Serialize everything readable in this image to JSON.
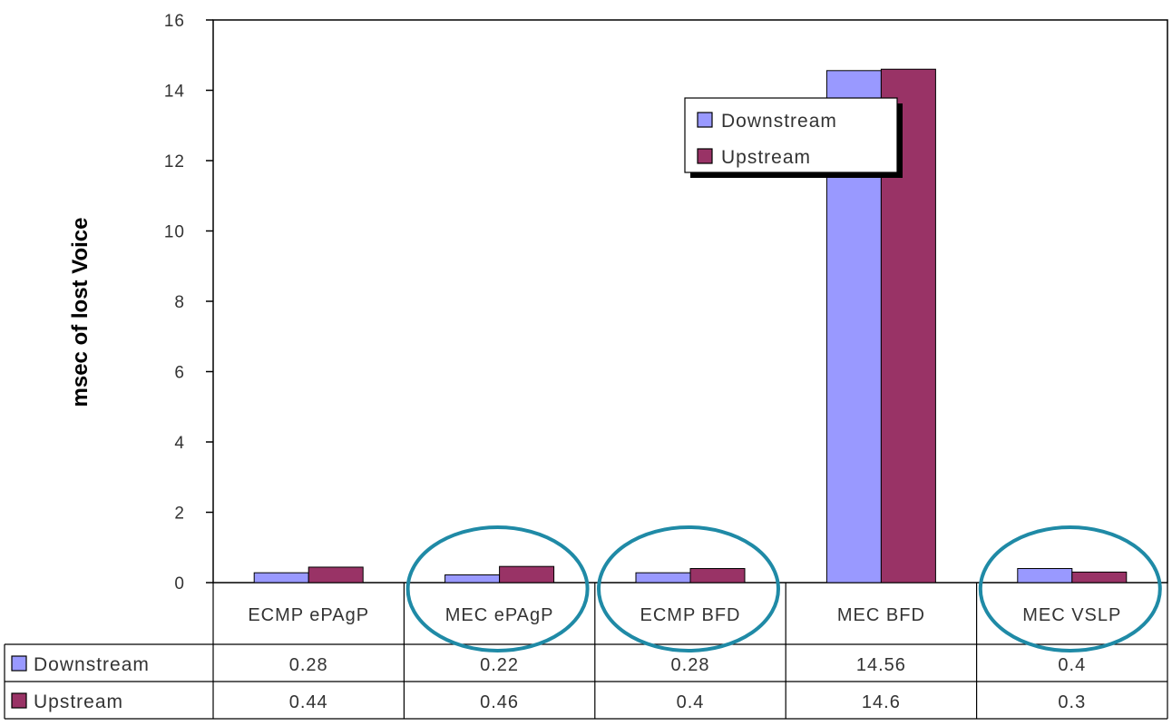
{
  "chart_data": {
    "type": "bar",
    "title": "",
    "xlabel": "",
    "ylabel": "msec of lost Voice",
    "ylim": [
      0,
      16
    ],
    "ytick_step": 2,
    "yticks": [
      "0",
      "2",
      "4",
      "6",
      "8",
      "10",
      "12",
      "14",
      "16"
    ],
    "grid": false,
    "legend_position": "top-right",
    "categories": [
      "ECMP ePAgP",
      "MEC ePAgP",
      "ECMP BFD",
      "MEC BFD",
      "MEC VSLP"
    ],
    "series": [
      {
        "name": "Downstream",
        "color": "#9999FF",
        "values": [
          0.28,
          0.22,
          0.28,
          14.56,
          0.4
        ],
        "labels": [
          "0.28",
          "0.22",
          "0.28",
          "14.56",
          "0.4"
        ]
      },
      {
        "name": "Upstream",
        "color": "#993366",
        "values": [
          0.44,
          0.46,
          0.4,
          14.6,
          0.3
        ],
        "labels": [
          "0.44",
          "0.46",
          "0.4",
          "14.6",
          "0.3"
        ]
      }
    ],
    "data_table": true,
    "highlighted_categories": [
      "MEC ePAgP",
      "ECMP BFD",
      "MEC VSLP"
    ],
    "highlight_color": "#1F8AA6"
  }
}
